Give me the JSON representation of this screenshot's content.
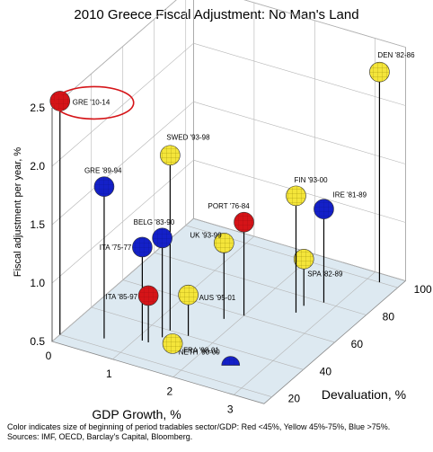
{
  "chart_data": {
    "type": "scatter",
    "title": "2010 Greece Fiscal Adjustment: No Man's Land",
    "xlabel": "GDP Growth, %",
    "ylabel": "Fiscal adjustment per year, %",
    "zlabel": "Devaluation, %",
    "xlim": [
      0,
      3.5
    ],
    "ylim": [
      0.5,
      2.5
    ],
    "zlim": [
      15,
      105
    ],
    "xticks": [
      0,
      1,
      2,
      3
    ],
    "yticks": [
      0.5,
      1.0,
      1.5,
      2.0,
      2.5
    ],
    "zticks": [
      20,
      40,
      60,
      80,
      100
    ],
    "legend": [
      {
        "color": "red",
        "meaning": "<45%"
      },
      {
        "color": "yellow",
        "meaning": "45%-75%"
      },
      {
        "color": "blue",
        "meaning": ">75%"
      }
    ],
    "colors": {
      "red": "#d51418",
      "yellow": "#f2dc10",
      "blue": "#1420c8"
    },
    "points": [
      {
        "label": "GRE '10-14",
        "x": 0.0,
        "y": 2.5,
        "z": 20,
        "color": "red",
        "highlighted": true
      },
      {
        "label": "DEN '82-86",
        "x": 3.2,
        "y": 2.3,
        "z": 100,
        "color": "yellow"
      },
      {
        "label": "SWED '93-98",
        "x": 1.3,
        "y": 2.0,
        "z": 40,
        "color": "yellow"
      },
      {
        "label": "GRE '89-94",
        "x": 0.6,
        "y": 1.8,
        "z": 25,
        "color": "blue"
      },
      {
        "label": "FIN '93-00",
        "x": 2.6,
        "y": 1.5,
        "z": 70,
        "color": "yellow"
      },
      {
        "label": "IRE '81-89",
        "x": 2.8,
        "y": 1.3,
        "z": 80,
        "color": "blue"
      },
      {
        "label": "BELG '83-90",
        "x": 1.3,
        "y": 1.35,
        "z": 35,
        "color": "blue"
      },
      {
        "label": "PORT '76-84",
        "x": 2.0,
        "y": 1.3,
        "z": 60,
        "color": "red"
      },
      {
        "label": "ITA '75-77",
        "x": 1.1,
        "y": 1.3,
        "z": 30,
        "color": "blue"
      },
      {
        "label": "UK '93-99",
        "x": 1.8,
        "y": 1.15,
        "z": 55,
        "color": "yellow"
      },
      {
        "label": "ITA '85-97",
        "x": 1.2,
        "y": 0.9,
        "z": 30,
        "color": "red"
      },
      {
        "label": "AUS '95-01",
        "x": 1.6,
        "y": 0.85,
        "z": 40,
        "color": "yellow"
      },
      {
        "label": "SPA '82-89",
        "x": 2.6,
        "y": 0.9,
        "z": 75,
        "color": "yellow"
      },
      {
        "label": "FRA '98-01",
        "x": 1.6,
        "y": 0.55,
        "z": 30,
        "color": "yellow"
      },
      {
        "label": "NETH '90-00",
        "x": 2.3,
        "y": 0.4,
        "z": 40,
        "color": "blue"
      }
    ]
  },
  "footnote": {
    "line1": "Color indicates size of beginning of period tradables sector/GDP: Red <45%, Yellow 45%-75%, Blue >75%.",
    "line2": "Sources: IMF, OECD, Barclay's Capital, Bloomberg."
  }
}
